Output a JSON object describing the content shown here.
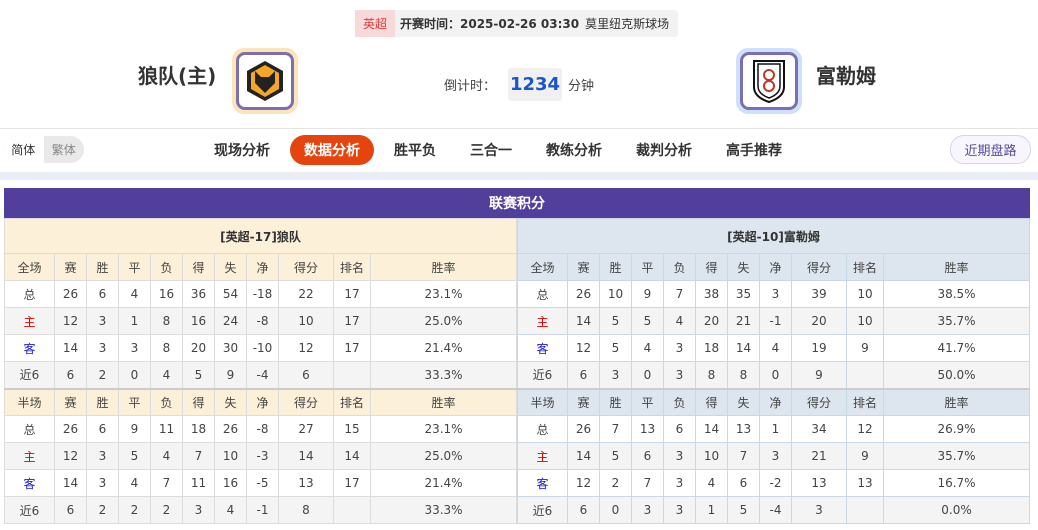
{
  "match": {
    "league": "英超",
    "kickoff": "开赛时间：2025-02-26 03:30",
    "venue": "莫里纽克斯球场",
    "home": "狼队(主)",
    "away": "富勒姆",
    "countdown_label": "倒计时：",
    "countdown_value": "1234",
    "countdown_unit": "分钟"
  },
  "lang": {
    "simplified": "简体",
    "traditional": "繁体"
  },
  "tabs": [
    "现场分析",
    "数据分析",
    "胜平负",
    "三合一",
    "教练分析",
    "裁判分析",
    "高手推荐"
  ],
  "active_tab": "数据分析",
  "recent_button": "近期盘路",
  "section_title": "联赛积分",
  "columns": [
    "赛",
    "胜",
    "平",
    "负",
    "得",
    "失",
    "净",
    "得分",
    "排名",
    "胜率"
  ],
  "home_table": {
    "title": "[英超-17]狼队",
    "full": {
      "label": "全场",
      "rows": [
        [
          "总",
          "26",
          "6",
          "4",
          "16",
          "36",
          "54",
          "-18",
          "22",
          "17",
          "23.1%"
        ],
        [
          "主",
          "12",
          "3",
          "1",
          "8",
          "16",
          "24",
          "-8",
          "10",
          "17",
          "25.0%"
        ],
        [
          "客",
          "14",
          "3",
          "3",
          "8",
          "20",
          "30",
          "-10",
          "12",
          "17",
          "21.4%"
        ],
        [
          "近6",
          "6",
          "2",
          "0",
          "4",
          "5",
          "9",
          "-4",
          "6",
          "",
          "33.3%"
        ]
      ]
    },
    "half": {
      "label": "半场",
      "rows": [
        [
          "总",
          "26",
          "6",
          "9",
          "11",
          "18",
          "26",
          "-8",
          "27",
          "15",
          "23.1%"
        ],
        [
          "主",
          "12",
          "3",
          "5",
          "4",
          "7",
          "10",
          "-3",
          "14",
          "14",
          "25.0%"
        ],
        [
          "客",
          "14",
          "3",
          "4",
          "7",
          "11",
          "16",
          "-5",
          "13",
          "17",
          "21.4%"
        ],
        [
          "近6",
          "6",
          "2",
          "2",
          "2",
          "3",
          "4",
          "-1",
          "8",
          "",
          "33.3%"
        ]
      ]
    }
  },
  "away_table": {
    "title": "[英超-10]富勒姆",
    "full": {
      "label": "全场",
      "rows": [
        [
          "总",
          "26",
          "10",
          "9",
          "7",
          "38",
          "35",
          "3",
          "39",
          "10",
          "38.5%"
        ],
        [
          "主",
          "14",
          "5",
          "5",
          "4",
          "20",
          "21",
          "-1",
          "20",
          "10",
          "35.7%"
        ],
        [
          "客",
          "12",
          "5",
          "4",
          "3",
          "18",
          "14",
          "4",
          "19",
          "9",
          "41.7%"
        ],
        [
          "近6",
          "6",
          "3",
          "0",
          "3",
          "8",
          "8",
          "0",
          "9",
          "",
          "50.0%"
        ]
      ]
    },
    "half": {
      "label": "半场",
      "rows": [
        [
          "总",
          "26",
          "7",
          "13",
          "6",
          "14",
          "13",
          "1",
          "34",
          "12",
          "26.9%"
        ],
        [
          "主",
          "14",
          "5",
          "6",
          "3",
          "10",
          "7",
          "3",
          "21",
          "9",
          "35.7%"
        ],
        [
          "客",
          "12",
          "2",
          "7",
          "3",
          "4",
          "6",
          "-2",
          "13",
          "13",
          "16.7%"
        ],
        [
          "近6",
          "6",
          "0",
          "3",
          "3",
          "1",
          "5",
          "-4",
          "3",
          "",
          "0.0%"
        ]
      ]
    }
  },
  "colors": {
    "accent": "#e5440f",
    "section": "#523f9b",
    "home_row": "#dd0000",
    "away_row": "#1a1ad0"
  }
}
